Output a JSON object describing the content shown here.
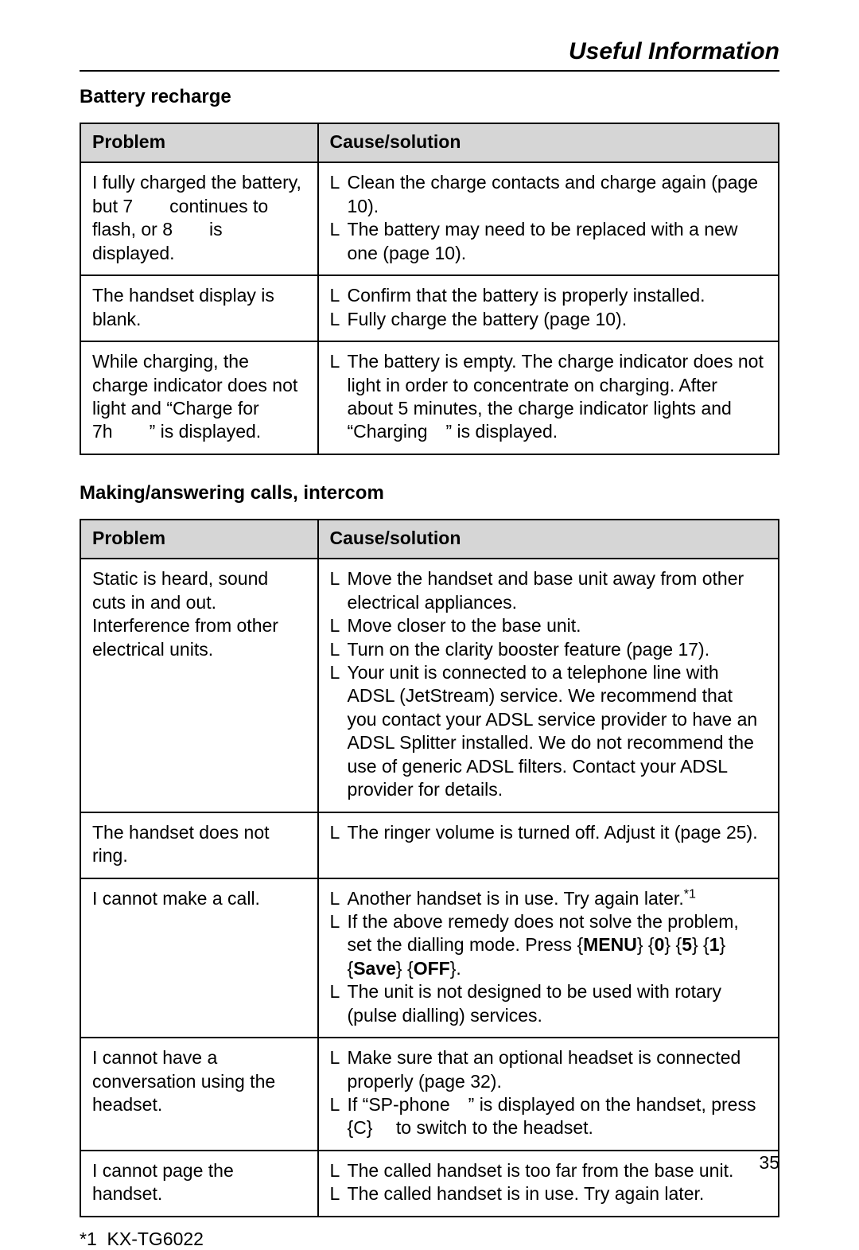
{
  "header": {
    "title": "Useful Information"
  },
  "page_number": "35",
  "footnote": {
    "marker": "*1",
    "text": "KX-TG6022"
  },
  "columns": {
    "problem": "Problem",
    "cause": "Cause/solution"
  },
  "bullet_marker": "L",
  "section1": {
    "heading": "Battery recharge",
    "rows": [
      {
        "problem": "I fully charged the battery, but 7  continues to flash, or 8  is displayed.",
        "causes": [
          "Clean the charge contacts and charge again (page 10).",
          "The battery may need to be replaced with a new one (page 10)."
        ]
      },
      {
        "problem": "The handset display is blank.",
        "causes": [
          "Confirm that the battery is properly installed.",
          "Fully charge the battery (page 10)."
        ]
      },
      {
        "problem": "While charging, the charge indicator does not light and “Charge for 7h  ” is displayed.",
        "causes": [
          "The battery is empty. The charge indicator does not light in order to concentrate on charging. After about 5 minutes, the charge indicator lights and “Charging ” is displayed."
        ]
      }
    ]
  },
  "section2": {
    "heading": "Making/answering calls, intercom",
    "rows": [
      {
        "problem": "Static is heard, sound cuts in and out. Interference from other electrical units.",
        "causes": [
          "Move the handset and base unit away from other electrical appliances.",
          "Move closer to the base unit.",
          "Turn on the clarity booster feature (page 17).",
          "Your unit is connected to a telephone line with ADSL (JetStream) service. We recommend that you contact your ADSL service provider to have an ADSL Splitter installed. We do not recommend the use of generic ADSL filters. Contact your ADSL provider for details."
        ]
      },
      {
        "problem": "The handset does not ring.",
        "causes": [
          "The ringer volume is turned off. Adjust it (page 25)."
        ]
      },
      {
        "problem": "I cannot make a call.",
        "causes_html": [
          "Another handset is in use. Try again later.<span class=\"sup\">*1</span>",
          "If the above remedy does not solve the problem, set the dialling mode. Press {<b>MENU</b>} {<b>0</b>} {<b>5</b>} {<b>1</b>} {<b>Save</b>} {<b>OFF</b>}.",
          "The unit is not designed to be used with rotary (pulse dialling) services."
        ]
      },
      {
        "problem": "I cannot have a conversation using the headset.",
        "causes": [
          "Make sure that an optional headset is connected properly (page 32).",
          "If “SP-phone ” is displayed on the handset, press {C}  to switch to the headset."
        ]
      },
      {
        "problem": "I cannot page the handset.",
        "causes": [
          "The called handset is too far from the base unit.",
          "The called handset is in use. Try again later."
        ]
      }
    ]
  }
}
